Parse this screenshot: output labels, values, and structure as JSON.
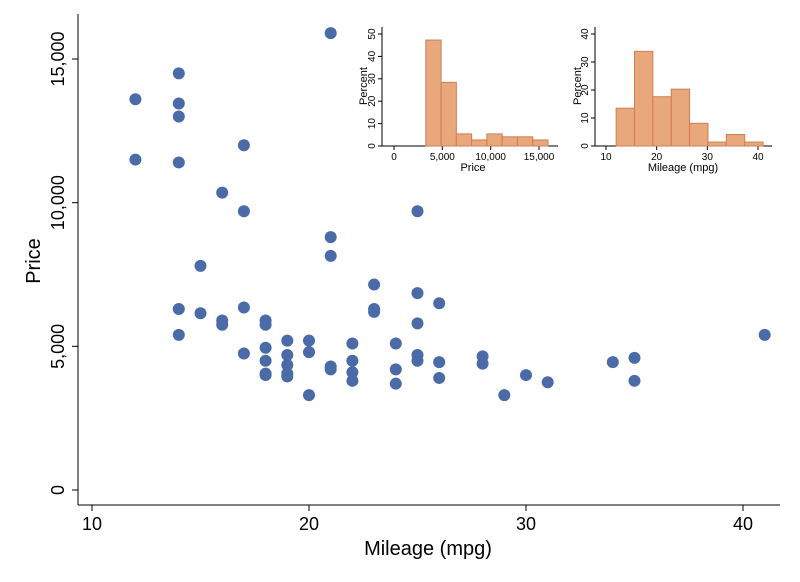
{
  "chart_data": [
    {
      "type": "scatter",
      "xlabel": "Mileage (mpg)",
      "ylabel": "Price",
      "xlim": [
        10,
        41.5
      ],
      "ylim": [
        0,
        16000
      ],
      "xticks": [
        10,
        20,
        30,
        40
      ],
      "yticks": [
        0,
        5000,
        10000,
        15000
      ],
      "ytick_labels": [
        "0",
        "5,000",
        "10,000",
        "15,000"
      ],
      "marker_color": "#4a6ba8",
      "grid": false,
      "points": [
        [
          12,
          13600
        ],
        [
          12,
          11500
        ],
        [
          14,
          14500
        ],
        [
          14,
          13450
        ],
        [
          14,
          13000
        ],
        [
          14,
          11400
        ],
        [
          14,
          6300
        ],
        [
          14,
          5400
        ],
        [
          15,
          7800
        ],
        [
          15,
          6150
        ],
        [
          16,
          10350
        ],
        [
          16,
          5900
        ],
        [
          16,
          5750
        ],
        [
          17,
          12000
        ],
        [
          17,
          9700
        ],
        [
          17,
          6350
        ],
        [
          17,
          4750
        ],
        [
          18,
          5900
        ],
        [
          18,
          5750
        ],
        [
          18,
          4950
        ],
        [
          18,
          4500
        ],
        [
          18,
          4050
        ],
        [
          18,
          4000
        ],
        [
          19,
          5200
        ],
        [
          19,
          4700
        ],
        [
          19,
          4350
        ],
        [
          19,
          4050
        ],
        [
          19,
          3950
        ],
        [
          20,
          5200
        ],
        [
          20,
          4800
        ],
        [
          20,
          3300
        ],
        [
          21,
          15900
        ],
        [
          21,
          8800
        ],
        [
          21,
          8150
        ],
        [
          21,
          4300
        ],
        [
          21,
          4200
        ],
        [
          22,
          5100
        ],
        [
          22,
          4500
        ],
        [
          22,
          4100
        ],
        [
          22,
          3800
        ],
        [
          23,
          7150
        ],
        [
          23,
          6300
        ],
        [
          23,
          6200
        ],
        [
          24,
          5100
        ],
        [
          24,
          4200
        ],
        [
          24,
          3700
        ],
        [
          25,
          9700
        ],
        [
          25,
          6850
        ],
        [
          25,
          5800
        ],
        [
          25,
          4700
        ],
        [
          25,
          4500
        ],
        [
          26,
          6500
        ],
        [
          26,
          4450
        ],
        [
          26,
          3900
        ],
        [
          28,
          4650
        ],
        [
          28,
          4400
        ],
        [
          29,
          3300
        ],
        [
          30,
          4000
        ],
        [
          31,
          3750
        ],
        [
          34,
          4450
        ],
        [
          35,
          4600
        ],
        [
          35,
          3800
        ],
        [
          41,
          5400
        ]
      ]
    },
    {
      "type": "bar",
      "subtype": "histogram",
      "xlabel": "Price",
      "ylabel": "Percent",
      "xlim": [
        0,
        16500
      ],
      "ylim": [
        0,
        52
      ],
      "xticks": [
        0,
        5000,
        10000,
        15000
      ],
      "xtick_labels": [
        "0",
        "5,000",
        "10,000",
        "15,000"
      ],
      "yticks": [
        0,
        10,
        20,
        30,
        40,
        50
      ],
      "bar_color": "#e8a87c",
      "edge_color": "#d07e50",
      "bin_start": 3291,
      "bin_width": 1580,
      "values": [
        47.3,
        28.4,
        5.4,
        2.7,
        5.4,
        4.1,
        4.1,
        2.7
      ]
    },
    {
      "type": "bar",
      "subtype": "histogram",
      "xlabel": "Mileage (mpg)",
      "ylabel": "Percent",
      "xlim": [
        10,
        42
      ],
      "ylim": [
        0,
        41
      ],
      "xticks": [
        10,
        20,
        30,
        40
      ],
      "yticks": [
        0,
        10,
        20,
        30,
        40
      ],
      "bar_color": "#e8a87c",
      "edge_color": "#d07e50",
      "bin_start": 12,
      "bin_width": 3.625,
      "values": [
        13.5,
        33.8,
        17.6,
        20.3,
        8.1,
        1.4,
        4.1,
        1.4
      ]
    }
  ]
}
